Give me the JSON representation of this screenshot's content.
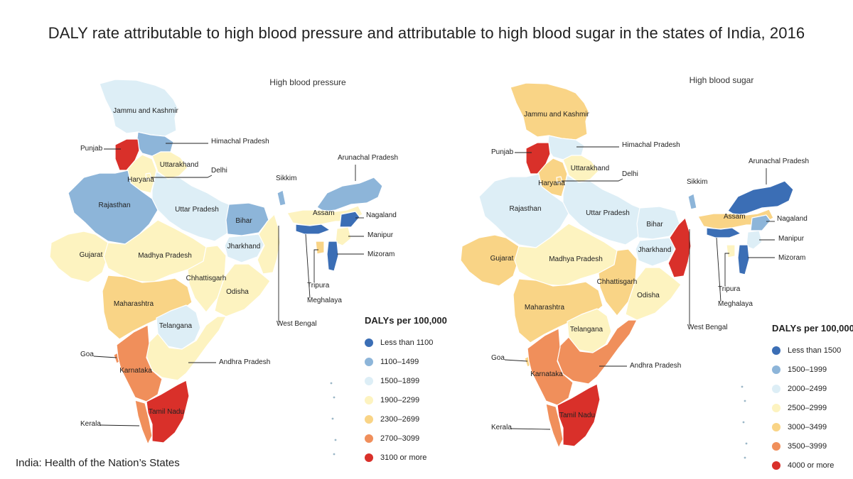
{
  "title": "DALY rate attributable to high blood pressure and attributable to high blood sugar in the states of India, 2016",
  "source": "India: Health of the Nation’s States",
  "colors": [
    "#3b6eb5",
    "#8db5d9",
    "#ddeef6",
    "#fdf3c0",
    "#f9d486",
    "#f08f5b",
    "#d9302a"
  ],
  "maps": [
    {
      "title": "High blood pressure",
      "legend_title": "DALYs per 100,000",
      "legend": [
        "Less than 1100",
        "1100–1499",
        "1500–1899",
        "1900–2299",
        "2300–2699",
        "2700–3099",
        "3100 or more"
      ],
      "states": {
        "Jammu and Kashmir": 2,
        "Himachal Pradesh": 1,
        "Punjab": 6,
        "Uttarakhand": 3,
        "Haryana": 3,
        "Delhi": 3,
        "Rajasthan": 1,
        "Uttar Pradesh": 2,
        "Bihar": 1,
        "Gujarat": 3,
        "Madhya Pradesh": 3,
        "Jharkhand": 2,
        "West Bengal": 3,
        "Chhattisgarh": 3,
        "Odisha": 3,
        "Maharashtra": 4,
        "Telangana": 2,
        "Andhra Pradesh": 3,
        "Goa": 5,
        "Karnataka": 5,
        "Kerala": 5,
        "Tamil Nadu": 6,
        "Sikkim": 1,
        "Arunachal Pradesh": 1,
        "Assam": 3,
        "Nagaland": 0,
        "Meghalaya": 0,
        "Manipur": 3,
        "Mizoram": 0,
        "Tripura": 4
      }
    },
    {
      "title": "High blood sugar",
      "legend_title": "DALYs per 100,000",
      "legend": [
        "Less than 1500",
        "1500–1999",
        "2000–2499",
        "2500–2999",
        "3000–3499",
        "3500–3999",
        "4000 or more"
      ],
      "states": {
        "Jammu and Kashmir": 4,
        "Himachal Pradesh": 2,
        "Punjab": 6,
        "Uttarakhand": 3,
        "Haryana": 4,
        "Delhi": 4,
        "Rajasthan": 2,
        "Uttar Pradesh": 2,
        "Bihar": 2,
        "Gujarat": 4,
        "Madhya Pradesh": 3,
        "Jharkhand": 2,
        "West Bengal": 6,
        "Chhattisgarh": 4,
        "Odisha": 3,
        "Maharashtra": 4,
        "Telangana": 3,
        "Andhra Pradesh": 5,
        "Goa": 4,
        "Karnataka": 5,
        "Kerala": 5,
        "Tamil Nadu": 6,
        "Sikkim": 1,
        "Arunachal Pradesh": 0,
        "Assam": 4,
        "Nagaland": 1,
        "Meghalaya": 0,
        "Manipur": 2,
        "Mizoram": 0,
        "Tripura": 3
      }
    }
  ]
}
